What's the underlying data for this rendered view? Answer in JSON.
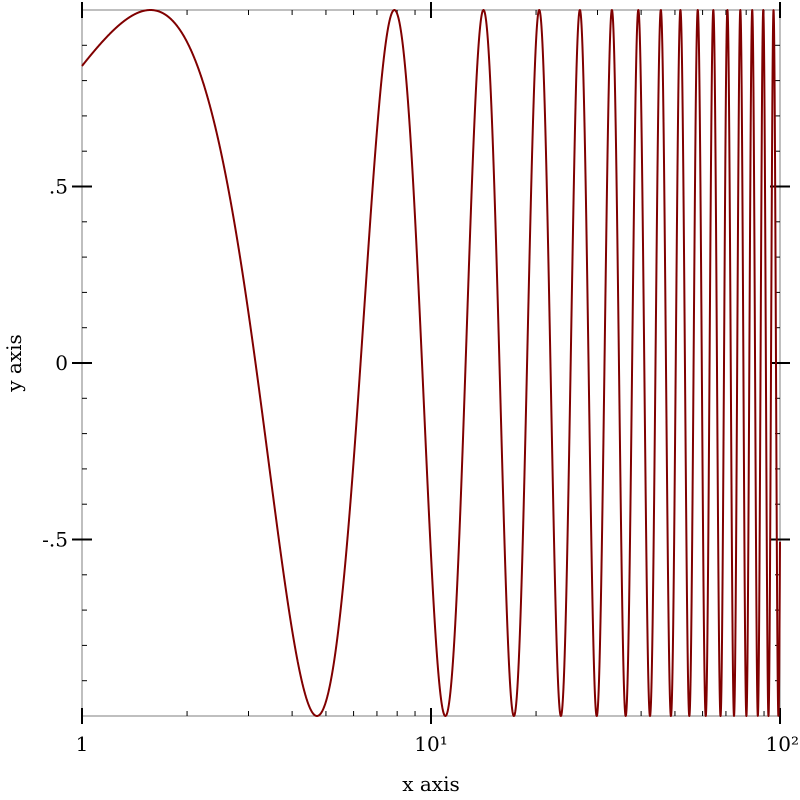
{
  "chart_data": {
    "type": "line",
    "title": "",
    "xlabel": "x axis",
    "ylabel": "y axis",
    "x_scale": "log",
    "xlim": [
      1,
      100
    ],
    "ylim": [
      -1,
      1
    ],
    "x_ticks": [
      {
        "value": 1,
        "label": "1"
      },
      {
        "value": 10,
        "label": "10¹"
      },
      {
        "value": 100,
        "label": "10²"
      }
    ],
    "y_ticks": [
      {
        "value": 0.5,
        "label": ".5"
      },
      {
        "value": 0,
        "label": "0"
      },
      {
        "value": -0.5,
        "label": "-.5"
      }
    ],
    "grid": false,
    "series": [
      {
        "function": "sin(x)",
        "color": "#800000",
        "x_range": [
          1,
          100
        ]
      }
    ]
  }
}
